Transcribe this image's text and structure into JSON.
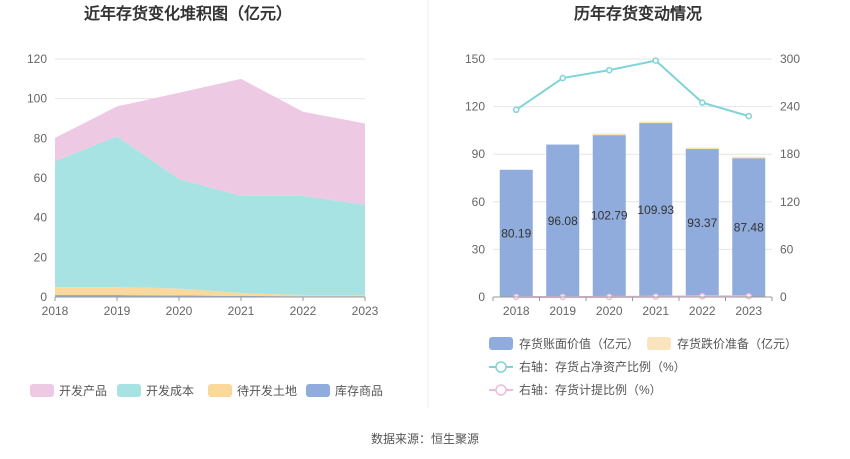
{
  "source": "数据来源：恒生聚源",
  "chart_data": [
    {
      "type": "area",
      "stacked": true,
      "title": "近年存货变化堆积图（亿元）",
      "categories": [
        "2018",
        "2019",
        "2020",
        "2021",
        "2022",
        "2023"
      ],
      "ylim": [
        0,
        120
      ],
      "yticks": [
        "0",
        "20",
        "40",
        "60",
        "80",
        "100",
        "120"
      ],
      "legend_position": "bottom",
      "series": [
        {
          "name": "库存商品",
          "color": "#8facdc",
          "values": [
            1.0,
            1.0,
            0.8,
            0.5,
            0.4,
            0.4
          ]
        },
        {
          "name": "待开发土地",
          "color": "#fbd99a",
          "values": [
            4.0,
            4.0,
            3.5,
            1.5,
            0.6,
            0.6
          ]
        },
        {
          "name": "开发成本",
          "color": "#a8e3e3",
          "values": [
            63.5,
            76.0,
            55.2,
            49.0,
            50.0,
            45.5
          ]
        },
        {
          "name": "开发产品",
          "color": "#eec9e3",
          "values": [
            11.7,
            15.1,
            43.5,
            59.0,
            42.4,
            41.0
          ]
        }
      ]
    },
    {
      "type": "bar",
      "title": "历年存货变动情况",
      "categories": [
        "2018",
        "2019",
        "2020",
        "2021",
        "2022",
        "2023"
      ],
      "ylim_left": [
        0,
        150
      ],
      "yticks_left": [
        "0",
        "30",
        "60",
        "90",
        "120",
        "150"
      ],
      "ylim_right": [
        0,
        300
      ],
      "yticks_right": [
        "0",
        "60",
        "120",
        "180",
        "240",
        "300"
      ],
      "legend_position": "bottom",
      "series": [
        {
          "name": "存货账面价值（亿元）",
          "kind": "bar",
          "color": "#8facdc",
          "values": [
            80.19,
            96.08,
            102.79,
            109.93,
            93.37,
            87.48
          ],
          "labels": [
            "80.19",
            "96.08",
            "102.79",
            "109.93",
            "93.37",
            "87.48"
          ]
        },
        {
          "name": "存货跌价准备（亿元）",
          "kind": "bar",
          "color": "#fbe3bd",
          "values": [
            0.0,
            0.0,
            0.1,
            0.6,
            0.8,
            0.9
          ]
        },
        {
          "name": "右轴：存货占净资产比例（%）",
          "kind": "line",
          "axis": "right",
          "color": "#7fd4d8",
          "values": [
            236,
            276,
            286,
            298,
            245,
            228
          ]
        },
        {
          "name": "右轴：存货计提比例（%）",
          "kind": "line",
          "axis": "right",
          "color": "#ecbde0",
          "values": [
            0.0,
            0.0,
            0.1,
            0.5,
            0.9,
            1.0
          ]
        }
      ]
    }
  ]
}
